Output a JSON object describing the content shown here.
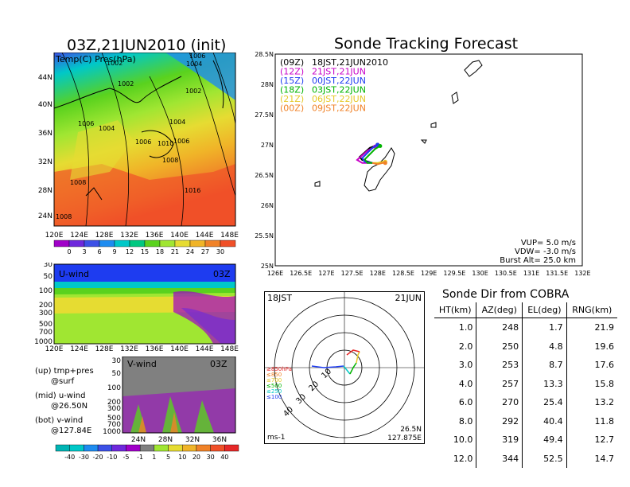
{
  "left_title": "03Z,21JUN2010 (init)",
  "main_title": "Sonde Tracking Forecast",
  "map_panel": {
    "label": "Temp(C) Pres(hPa)",
    "isobar_labels": [
      "1006",
      "1004",
      "1002",
      "1002",
      "1002",
      "1006",
      "1004",
      "1004",
      "1006",
      "1010",
      "1006",
      "1008",
      "1008",
      "1016",
      "1008"
    ],
    "lat_ticks": [
      "44N",
      "40N",
      "36N",
      "32N",
      "28N",
      "24N"
    ],
    "lon_ticks": [
      "120E",
      "124E",
      "128E",
      "132E",
      "136E",
      "140E",
      "144E",
      "148E"
    ],
    "colorbar_ticks": [
      "0",
      "3",
      "6",
      "9",
      "12",
      "15",
      "18",
      "21",
      "24",
      "27",
      "30"
    ],
    "colorbar_colors": [
      "#a000c8",
      "#6e28dc",
      "#3c50e6",
      "#1e8cf0",
      "#00c8c8",
      "#00c880",
      "#5ad21e",
      "#a0e632",
      "#e6dc32",
      "#f0b428",
      "#f08228",
      "#f05028"
    ]
  },
  "u_panel": {
    "label": "U-wind",
    "time": "03Z",
    "p_ticks": [
      "30",
      "50",
      "100",
      "200",
      "300",
      "500",
      "700",
      "1000"
    ],
    "lon_ticks": [
      "120E",
      "124E",
      "128E",
      "132E",
      "136E",
      "140E",
      "144E",
      "148E"
    ]
  },
  "v_panel": {
    "label": "V-wind",
    "time": "03Z",
    "p_ticks": [
      "30",
      "50",
      "100",
      "200",
      "300",
      "500",
      "700",
      "1000"
    ],
    "lat_ticks": [
      "24N",
      "28N",
      "32N",
      "36N"
    ]
  },
  "notes": [
    "(up) tmp+pres",
    "@surf",
    "(mid) u-wind",
    "@26.50N",
    "(bot) v-wind",
    "@127.84E"
  ],
  "wind_colorbar": {
    "ticks": [
      "-40",
      "-30",
      "-20",
      "-10",
      "-5",
      "-1",
      "1",
      "5",
      "10",
      "20",
      "30",
      "40"
    ],
    "colors": [
      "#00b4b4",
      "#00c8c8",
      "#1e8cf0",
      "#3c50e6",
      "#6e28dc",
      "#a000c8",
      "#808080",
      "#a0e632",
      "#e6dc32",
      "#f0b428",
      "#f08228",
      "#f05028",
      "#e62828"
    ]
  },
  "track_panel": {
    "lat_ticks": [
      "28.5N",
      "28N",
      "27.5N",
      "27N",
      "26.5N",
      "26N",
      "25.5N",
      "25N"
    ],
    "lon_ticks": [
      "126E",
      "126.5E",
      "127E",
      "127.5E",
      "128E",
      "128.5E",
      "129E",
      "129.5E",
      "130E",
      "130.5E",
      "131E",
      "131.5E",
      "132E"
    ],
    "legend": [
      {
        "code": "(09Z)",
        "time": "18JST,21JUN2010",
        "color": "#000000"
      },
      {
        "code": "(12Z)",
        "time": "21JST,21JUN",
        "color": "#c800c8"
      },
      {
        "code": "(15Z)",
        "time": "00JST,22JUN",
        "color": "#1e3cf0"
      },
      {
        "code": "(18Z)",
        "time": "03JST,22JUN",
        "color": "#00b400"
      },
      {
        "code": "(21Z)",
        "time": "06JST,22JUN",
        "color": "#e6c828"
      },
      {
        "code": "(00Z)",
        "time": "09JST,22JUN",
        "color": "#f08228"
      }
    ],
    "params": [
      "VUP= 5.0 m/s",
      "VDW= -3.0 m/s",
      "Burst Alt= 25.0 km"
    ]
  },
  "polar_panel": {
    "time_left": "18JST",
    "time_right": "21JUN",
    "ring_labels": [
      "10",
      "20",
      "30",
      "40"
    ],
    "pressure_legend": [
      {
        "label": "≥850hPa",
        "color": "#e62828"
      },
      {
        "label": "≤850",
        "color": "#f08228"
      },
      {
        "label": "≤700",
        "color": "#e6c828"
      },
      {
        "label": "≤500",
        "color": "#00b400"
      },
      {
        "label": "≤250",
        "color": "#00c8c8"
      },
      {
        "label": "≤100",
        "color": "#1e3cf0"
      }
    ],
    "unit": "ms-1",
    "lat": "26.5N",
    "lon": "127.875E"
  },
  "cobra": {
    "title": "Sonde Dir from COBRA",
    "headers": [
      "HT(km)",
      "AZ(deg)",
      "EL(deg)",
      "RNG(km)"
    ],
    "rows": [
      [
        "1.0",
        "248",
        "1.7",
        "21.9"
      ],
      [
        "2.0",
        "250",
        "4.8",
        "19.6"
      ],
      [
        "3.0",
        "253",
        "8.7",
        "17.6"
      ],
      [
        "4.0",
        "257",
        "13.3",
        "15.8"
      ],
      [
        "6.0",
        "270",
        "25.4",
        "13.2"
      ],
      [
        "8.0",
        "292",
        "40.4",
        "11.8"
      ],
      [
        "10.0",
        "319",
        "49.4",
        "12.7"
      ],
      [
        "12.0",
        "344",
        "52.5",
        "14.7"
      ]
    ]
  },
  "chart_data": [
    {
      "type": "heatmap",
      "title": "03Z,21JUN2010 (init)",
      "xlabel": "",
      "ylabel": "",
      "x_ticks": [
        "120E",
        "124E",
        "128E",
        "132E",
        "136E",
        "140E",
        "144E",
        "148E"
      ],
      "y_ticks": [
        "24N",
        "28N",
        "32N",
        "36N",
        "40N",
        "44N"
      ],
      "colorbar": [
        0,
        3,
        6,
        9,
        12,
        15,
        18,
        21,
        24,
        27,
        30
      ]
    },
    {
      "type": "line",
      "title": "Sonde Tracking Forecast",
      "xlim": [
        126,
        132
      ],
      "ylim": [
        25,
        28.5
      ],
      "series": [
        {
          "name": "(09Z) 18JST,21JUN2010",
          "x": [
            127.9,
            127.7,
            127.65,
            127.85,
            128.0
          ],
          "y": [
            26.7,
            26.75,
            26.8,
            26.95,
            27.0
          ]
        },
        {
          "name": "(12Z) 21JST,21JUN",
          "x": [
            127.9,
            127.7,
            127.6,
            127.8,
            127.95
          ],
          "y": [
            26.7,
            26.7,
            26.75,
            26.9,
            26.97
          ]
        },
        {
          "name": "(15Z) 00JST,22JUN",
          "x": [
            127.9,
            127.75,
            127.7,
            127.9,
            128.0
          ],
          "y": [
            26.7,
            26.72,
            26.78,
            26.95,
            27.0
          ]
        },
        {
          "name": "(18Z) 03JST,22JUN",
          "x": [
            127.9,
            127.8,
            127.75,
            127.95,
            128.05
          ],
          "y": [
            26.7,
            26.7,
            26.76,
            26.93,
            26.98
          ]
        },
        {
          "name": "(21Z) 06JST,22JUN",
          "x": [
            127.9,
            128.0,
            128.1,
            128.15
          ],
          "y": [
            26.7,
            26.7,
            26.72,
            26.72
          ]
        },
        {
          "name": "(00Z) 09JST,22JUN",
          "x": [
            127.9,
            128.0,
            128.1,
            128.15
          ],
          "y": [
            26.7,
            26.68,
            26.7,
            26.7
          ]
        }
      ]
    },
    {
      "type": "table",
      "title": "Sonde Dir from COBRA",
      "columns": [
        "HT(km)",
        "AZ(deg)",
        "EL(deg)",
        "RNG(km)"
      ],
      "rows": [
        [
          1.0,
          248,
          1.7,
          21.9
        ],
        [
          2.0,
          250,
          4.8,
          19.6
        ],
        [
          3.0,
          253,
          8.7,
          17.6
        ],
        [
          4.0,
          257,
          13.3,
          15.8
        ],
        [
          6.0,
          270,
          25.4,
          13.2
        ],
        [
          8.0,
          292,
          40.4,
          11.8
        ],
        [
          10.0,
          319,
          49.4,
          12.7
        ],
        [
          12.0,
          344,
          52.5,
          14.7
        ]
      ]
    }
  ]
}
